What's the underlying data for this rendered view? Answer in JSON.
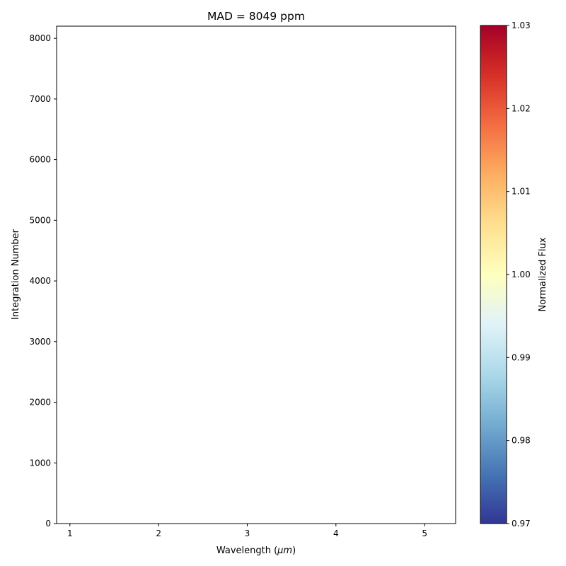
{
  "chart_data": {
    "type": "heatmap",
    "title": "MAD = 8049 ppm",
    "xlabel": "Wavelength (",
    "xlabel_unit": "μm",
    "xlabel_close": ")",
    "ylabel": "Integration Number",
    "xlim": [
      0.85,
      5.35
    ],
    "ylim": [
      0,
      8200
    ],
    "xticks": [
      1,
      2,
      3,
      4,
      5
    ],
    "yticks": [
      0,
      1000,
      2000,
      3000,
      4000,
      5000,
      6000,
      7000,
      8000
    ],
    "grid": false,
    "colorbar": {
      "label": "Normalized Flux",
      "range": [
        0.97,
        1.03
      ],
      "ticks": [
        "0.97",
        "0.98",
        "0.99",
        "1.00",
        "1.01",
        "1.02",
        "1.03"
      ],
      "colormap": "RdYlBu_r",
      "stops": [
        "#313695",
        "#4575b4",
        "#74add1",
        "#abd9e9",
        "#e0f3f8",
        "#ffffbf",
        "#fee090",
        "#fdae61",
        "#f46d43",
        "#d73027",
        "#a50026"
      ]
    },
    "values": []
  }
}
